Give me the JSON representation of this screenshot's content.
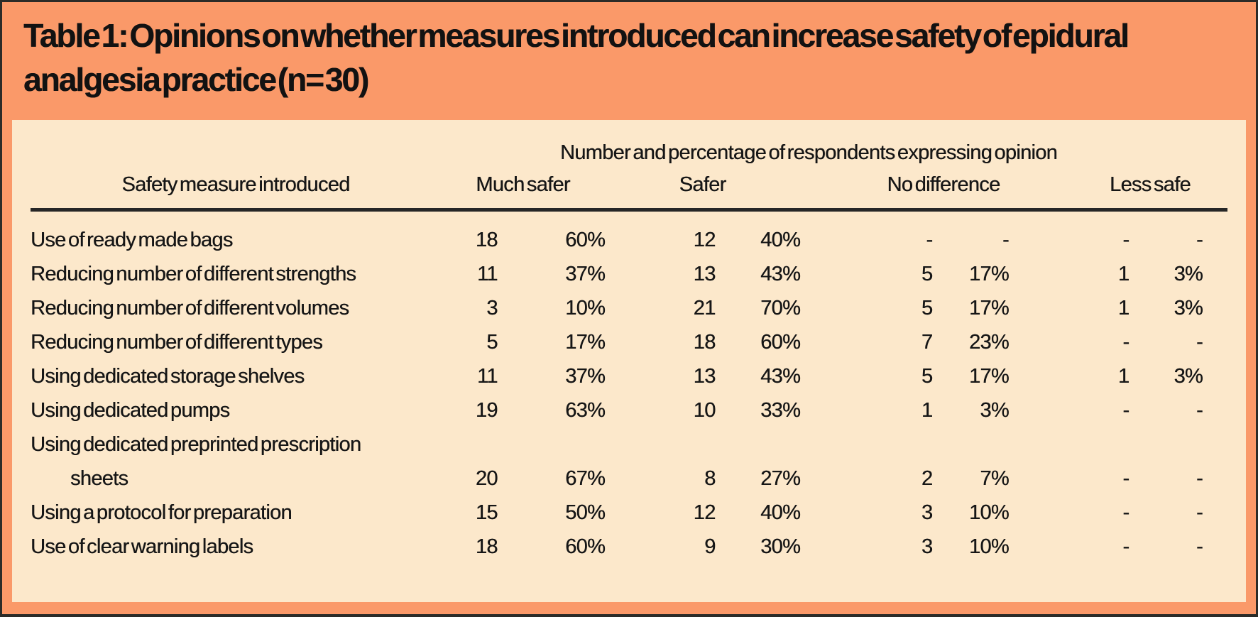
{
  "title": {
    "lines": [
      "Table 1: Opinions on whether measures introduced can increase safety of epidural",
      "analgesia practice (n= 30)"
    ]
  },
  "table": {
    "span_header": "Number and percentage of respondents expressing opinion",
    "measure_header": "Safety measure introduced",
    "opinion_columns": [
      "Much safer",
      "Safer",
      "No difference",
      "Less safe"
    ],
    "rows": [
      {
        "measure": "Use of ready made bags",
        "indent": false,
        "values": [
          "18",
          "60%",
          "12",
          "40%",
          "-",
          "-",
          "-",
          "-"
        ]
      },
      {
        "measure": "Reducing number of different strengths",
        "indent": false,
        "values": [
          "11",
          "37%",
          "13",
          "43%",
          "5",
          "17%",
          "1",
          "3%"
        ]
      },
      {
        "measure": "Reducing number of different volumes",
        "indent": false,
        "values": [
          "3",
          "10%",
          "21",
          "70%",
          "5",
          "17%",
          "1",
          "3%"
        ]
      },
      {
        "measure": "Reducing number of different types",
        "indent": false,
        "values": [
          "5",
          "17%",
          "18",
          "60%",
          "7",
          "23%",
          "-",
          "-"
        ]
      },
      {
        "measure": "Using dedicated storage shelves",
        "indent": false,
        "values": [
          "11",
          "37%",
          "13",
          "43%",
          "5",
          "17%",
          "1",
          "3%"
        ]
      },
      {
        "measure": "Using dedicated pumps",
        "indent": false,
        "values": [
          "19",
          "63%",
          "10",
          "33%",
          "1",
          "3%",
          "-",
          "-"
        ]
      },
      {
        "measure": "Using dedicated preprinted prescription",
        "indent": false,
        "values": [
          "",
          "",
          "",
          "",
          "",
          "",
          "",
          ""
        ]
      },
      {
        "measure": "sheets",
        "indent": true,
        "values": [
          "20",
          "67%",
          "8",
          "27%",
          "2",
          "7%",
          "-",
          "-"
        ]
      },
      {
        "measure": "Using a protocol for preparation",
        "indent": false,
        "values": [
          "15",
          "50%",
          "12",
          "40%",
          "3",
          "10%",
          "-",
          "-"
        ]
      },
      {
        "measure": "Use of clear warning labels",
        "indent": false,
        "values": [
          "18",
          "60%",
          "9",
          "30%",
          "3",
          "10%",
          "-",
          "-"
        ]
      }
    ]
  },
  "colors": {
    "band_orange": "#FA9969",
    "panel_peach": "#FCE8CB",
    "rule_dark": "#262626",
    "text": "#141414"
  }
}
